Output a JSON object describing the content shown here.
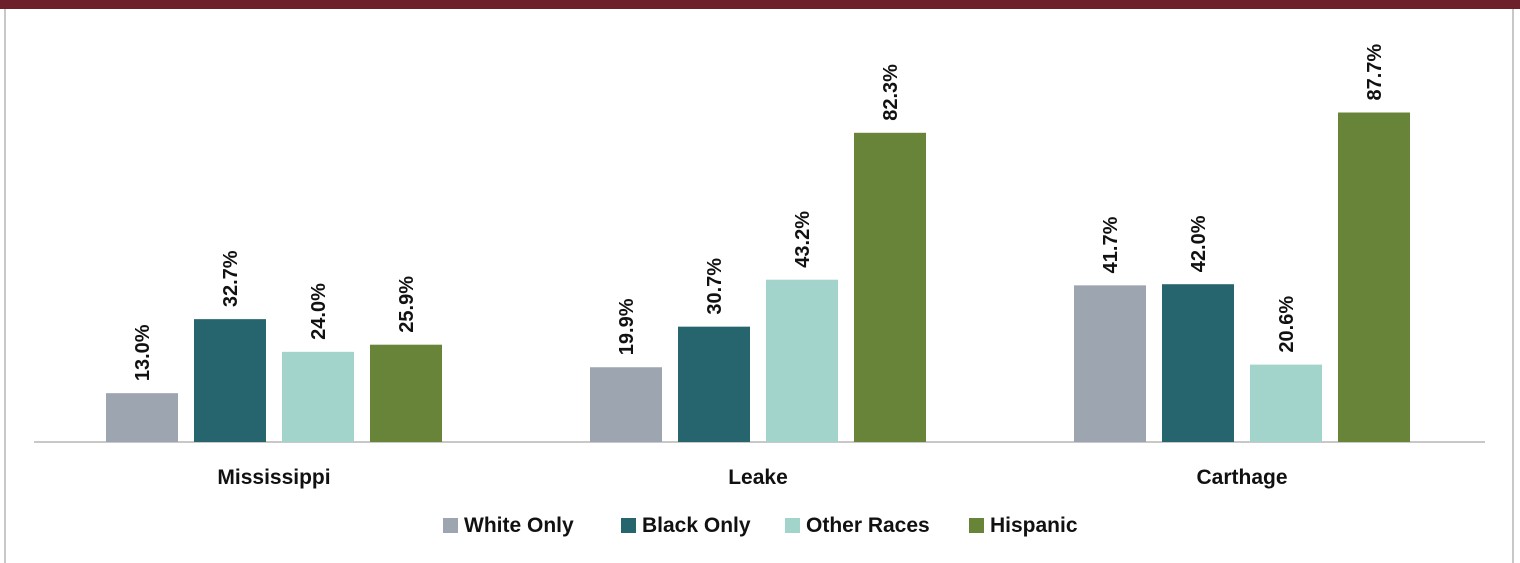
{
  "chart_data": {
    "type": "bar",
    "categories": [
      "Mississippi",
      "Leake",
      "Carthage"
    ],
    "series": [
      {
        "name": "White Only",
        "color": "#9da6b0",
        "values": [
          13.0,
          19.9,
          41.7
        ],
        "labels": [
          "13.0%",
          "19.9%",
          "41.7%"
        ]
      },
      {
        "name": "Black Only",
        "color": "#26656d",
        "values": [
          32.7,
          30.7,
          42.0
        ],
        "labels": [
          "32.7%",
          "30.7%",
          "42.0%"
        ]
      },
      {
        "name": "Other Races",
        "color": "#a2d4cc",
        "values": [
          24.0,
          43.2,
          20.6
        ],
        "labels": [
          "24.0%",
          "43.2%",
          "20.6%"
        ]
      },
      {
        "name": "Hispanic",
        "color": "#688439",
        "values": [
          25.9,
          82.3,
          87.7
        ],
        "labels": [
          "25.9%",
          "82.3%",
          "87.7%"
        ]
      }
    ],
    "title": "",
    "xlabel": "",
    "ylabel": "",
    "ylim": [
      0,
      100
    ],
    "grid": false,
    "legend_position": "bottom"
  },
  "colors": {
    "header_bar": "#6e1f2c",
    "axis": "#c8c8c8"
  }
}
